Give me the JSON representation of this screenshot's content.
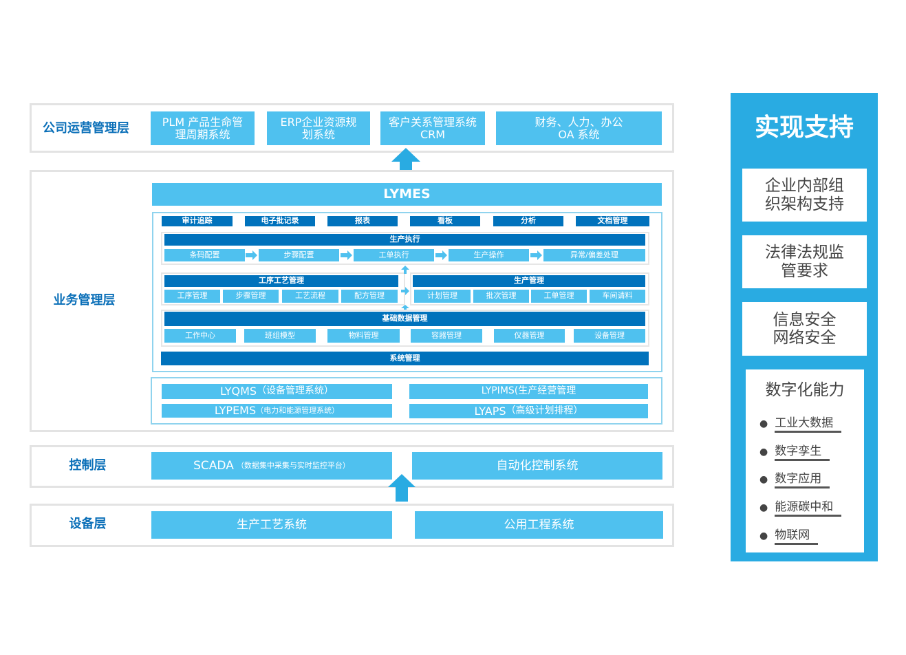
{
  "company_layer": {
    "label": "公司运营管理层",
    "items": [
      [
        "PLM 产品生命管",
        "理周期系统"
      ],
      [
        "ERP企业资源规",
        "划系统"
      ],
      [
        "客户关系管理系统",
        "CRM"
      ],
      [
        "财务、人力、办公",
        "OA 系统"
      ]
    ]
  },
  "business_layer": {
    "label": "业务管理层",
    "lymes": "LYMES",
    "top_tabs": [
      "审计追踪",
      "电子批记录",
      "报表",
      "看板",
      "分析",
      "文档管理"
    ],
    "production_execution": {
      "title": "生产执行",
      "steps": [
        "条码配置",
        "步骤配置",
        "工单执行",
        "生产操作",
        "异常/偏差处理"
      ]
    },
    "process_management": {
      "title": "工序工艺管理",
      "items": [
        "工序管理",
        "步骤管理",
        "工艺流程",
        "配方管理"
      ]
    },
    "production_management": {
      "title": "生产管理",
      "items": [
        "计划管理",
        "批次管理",
        "工单管理",
        "车间请料"
      ]
    },
    "base_data": {
      "title": "基础数据管理",
      "items": [
        "工作中心",
        "班组模型",
        "物料管理",
        "容器管理",
        "仪器管理",
        "设备管理"
      ]
    },
    "system_management": "系统管理",
    "subsystems": [
      {
        "name": "LYQMS",
        "desc": "（设备管理系统）"
      },
      {
        "name": "LYPIMS(生产经营管理",
        "desc": ""
      },
      {
        "name": "LYPEMS",
        "desc": "（电力和能源管理系统）"
      },
      {
        "name": "LYAPS",
        "desc": "（高级计划排程）"
      }
    ]
  },
  "control_layer": {
    "label": "控制层",
    "scada": "SCADA",
    "scada_desc": "（数据集中采集与实时监控平台）",
    "automation": "自动化控制系统"
  },
  "device_layer": {
    "label": "设备层",
    "items": [
      "生产工艺系统",
      "公用工程系统"
    ]
  },
  "support": {
    "title": "实现支持",
    "boxes": [
      [
        "企业内部组",
        "织架构支持"
      ],
      [
        "法律法规监",
        "管要求"
      ],
      [
        "信息安全",
        "网络安全"
      ]
    ],
    "digital": {
      "title": "数字化能力",
      "items": [
        "工业大数据",
        "数字孪生",
        "数字应用",
        "能源碳中和",
        "物联网"
      ]
    }
  },
  "colors": {
    "light_blue": "#4fc1ef",
    "dark_blue": "#0072bc",
    "panel_blue": "#29abe2"
  }
}
